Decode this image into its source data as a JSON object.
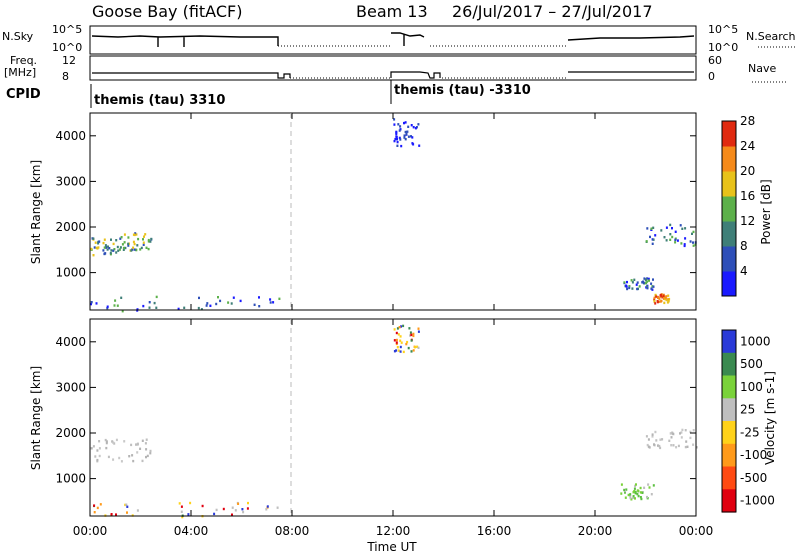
{
  "header": {
    "station": "Goose Bay (fitACF)",
    "beam": "Beam 13",
    "date_range": "26/Jul/2017 – 27/Jul/2017"
  },
  "strips": {
    "nsky_label": "N.Sky",
    "nsky_ticks": [
      "10^5",
      "10^0"
    ],
    "nsearch_label": "N.Search",
    "nsearch_ticks": [
      "10^5",
      "10^0"
    ],
    "freq_label_1": "Freq.",
    "freq_label_2": "[MHz]",
    "freq_ticks": [
      "12",
      "8"
    ],
    "nave_label": "Nave",
    "nave_ticks": [
      "60",
      "0"
    ],
    "cpid_label": "CPID",
    "cpid_segments": [
      {
        "text": "themis (tau) 3310",
        "start_hour": 0
      },
      {
        "text": "themis (tau) -3310",
        "start_hour": 12
      }
    ]
  },
  "time_axis": {
    "label": "Time UT",
    "ticks": [
      "00:00",
      "04:00",
      "08:00",
      "12:00",
      "16:00",
      "20:00",
      "00:00"
    ]
  },
  "chart_data": [
    {
      "type": "heatmap",
      "title": "",
      "xlabel": "Time UT",
      "ylabel": "Slant Range [km]",
      "xlim": [
        0,
        24
      ],
      "ylim": [
        180,
        4500
      ],
      "yticks": [
        1000,
        2000,
        3000,
        4000
      ],
      "colorbar": {
        "label": "Power [dB]",
        "ticks": [
          "4",
          "8",
          "12",
          "16",
          "20",
          "24",
          "28"
        ],
        "colors": [
          "#1a1aff",
          "#2e4fb8",
          "#3f7f78",
          "#5cb04a",
          "#e8c21a",
          "#f58a1a",
          "#e02a10"
        ]
      },
      "echo_regions": [
        {
          "t_start": 0.0,
          "t_end": 1.2,
          "range_low": 1400,
          "range_high": 1800,
          "level": "green/yellow"
        },
        {
          "t_start": 1.2,
          "t_end": 2.4,
          "range_low": 1500,
          "range_high": 1900,
          "level": "green/yellow"
        },
        {
          "t_start": 0.0,
          "t_end": 7.5,
          "range_low": 180,
          "range_high": 500,
          "level": "blue/green"
        },
        {
          "t_start": 12.0,
          "t_end": 13.0,
          "range_low": 3800,
          "range_high": 4400,
          "level": "blue"
        },
        {
          "t_start": 21.0,
          "t_end": 22.3,
          "range_low": 650,
          "range_high": 900,
          "level": "blue/green"
        },
        {
          "t_start": 22.0,
          "t_end": 24.0,
          "range_low": 1600,
          "range_high": 2100,
          "level": "blue/green"
        },
        {
          "t_start": 22.3,
          "t_end": 22.9,
          "range_low": 350,
          "range_high": 550,
          "level": "orange/red"
        }
      ]
    },
    {
      "type": "heatmap",
      "title": "",
      "xlabel": "Time UT",
      "ylabel": "Slant Range [km]",
      "xlim": [
        0,
        24
      ],
      "ylim": [
        180,
        4500
      ],
      "yticks": [
        1000,
        2000,
        3000,
        4000
      ],
      "colorbar": {
        "label": "Velocity [m s-1]",
        "ticks": [
          "1000",
          "500",
          "100",
          "25",
          "-25",
          "-100",
          "-500",
          "-1000"
        ],
        "colors": [
          "#2a3ad8",
          "#3a8a50",
          "#7ad23a",
          "#bfbfbf",
          "#ffd21a",
          "#ff9a1a",
          "#ff4a12",
          "#e00010"
        ]
      },
      "echo_regions": [
        {
          "t_start": 0.0,
          "t_end": 2.4,
          "range_low": 1400,
          "range_high": 1900,
          "level": "ground scatter (grey)"
        },
        {
          "t_start": 0.0,
          "t_end": 7.5,
          "range_low": 180,
          "range_high": 500,
          "level": "mixed"
        },
        {
          "t_start": 12.0,
          "t_end": 13.0,
          "range_low": 3800,
          "range_high": 4400,
          "level": "mixed"
        },
        {
          "t_start": 21.0,
          "t_end": 22.3,
          "range_low": 550,
          "range_high": 900,
          "level": "green"
        },
        {
          "t_start": 22.0,
          "t_end": 24.0,
          "range_low": 1700,
          "range_high": 2100,
          "level": "ground scatter (grey)"
        }
      ]
    }
  ]
}
